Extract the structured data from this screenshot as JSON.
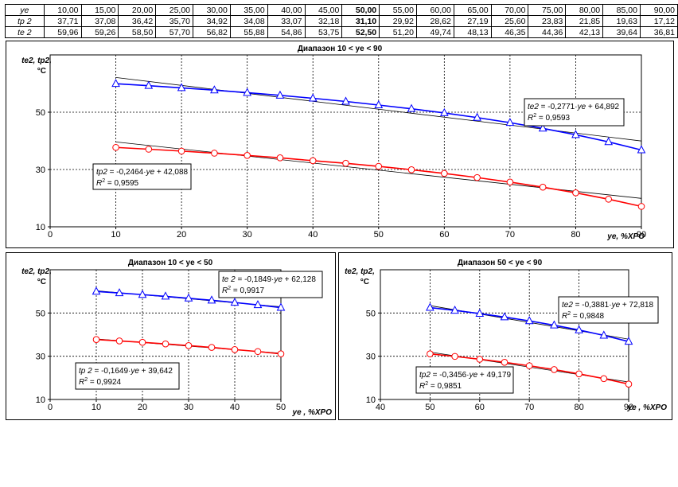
{
  "table": {
    "rows": [
      {
        "label": "ye",
        "values": [
          "10,00",
          "15,00",
          "20,00",
          "25,00",
          "30,00",
          "35,00",
          "40,00",
          "45,00",
          "50,00",
          "55,00",
          "60,00",
          "65,00",
          "70,00",
          "75,00",
          "80,00",
          "85,00",
          "90,00"
        ]
      },
      {
        "label": "tp 2",
        "values": [
          "37,71",
          "37,08",
          "36,42",
          "35,70",
          "34,92",
          "34,08",
          "33,07",
          "32,18",
          "31,10",
          "29,92",
          "28,62",
          "27,19",
          "25,60",
          "23,83",
          "21,85",
          "19,63",
          "17,12"
        ]
      },
      {
        "label": "te 2",
        "values": [
          "59,96",
          "59,26",
          "58,50",
          "57,70",
          "56,82",
          "55,88",
          "54,86",
          "53,75",
          "52,50",
          "51,20",
          "49,74",
          "48,13",
          "46,35",
          "44,36",
          "42,13",
          "39,64",
          "36,81"
        ]
      }
    ],
    "highlight_index": 8
  },
  "chart_data": [
    {
      "type": "line",
      "title": "Диапазон 10 < ye < 90",
      "ylabel_lines": [
        "te2, tp2,",
        "°C"
      ],
      "xlabel": "ye, %ХРО",
      "xlim": [
        0,
        90
      ],
      "ylim": [
        10,
        70
      ],
      "xticks": [
        "0",
        "10",
        "20",
        "30",
        "40",
        "50",
        "60",
        "70",
        "80",
        "90"
      ],
      "yticks": [
        "10",
        "30",
        "50"
      ],
      "grid": true,
      "series": [
        {
          "key": "te2",
          "color": "#0000ff",
          "marker": "triangle",
          "x": [
            10,
            15,
            20,
            25,
            30,
            35,
            40,
            45,
            50,
            55,
            60,
            65,
            70,
            75,
            80,
            85,
            90
          ],
          "values": [
            59.96,
            59.26,
            58.5,
            57.7,
            56.82,
            55.88,
            54.86,
            53.75,
            52.5,
            51.2,
            49.74,
            48.13,
            46.35,
            44.36,
            42.13,
            39.64,
            36.81
          ],
          "trend": {
            "slope": -0.2771,
            "intercept": 64.892
          }
        },
        {
          "key": "tp2",
          "color": "#ff0000",
          "marker": "circle",
          "x": [
            10,
            15,
            20,
            25,
            30,
            35,
            40,
            45,
            50,
            55,
            60,
            65,
            70,
            75,
            80,
            85,
            90
          ],
          "values": [
            37.71,
            37.08,
            36.42,
            35.7,
            34.92,
            34.08,
            33.07,
            32.18,
            31.1,
            29.92,
            28.62,
            27.19,
            25.6,
            23.83,
            21.85,
            19.63,
            17.12
          ],
          "trend": {
            "slope": -0.2464,
            "intercept": 42.088
          }
        }
      ],
      "annotations": [
        {
          "series": "te2",
          "equation": "te2 = -0,2771·ye + 64,892",
          "r2_label": "R",
          "r2_value": " = 0,9593"
        },
        {
          "series": "tp2",
          "equation": "tp2 = -0,2464·ye + 42,088",
          "r2_label": "R",
          "r2_value": " = 0,9595"
        }
      ]
    },
    {
      "type": "line",
      "title": "Диапазон  10 < ye < 50",
      "ylabel_lines": [
        "te2, tp2,",
        "°C"
      ],
      "xlabel": "ye , %ХРО",
      "xlim": [
        0,
        50
      ],
      "ylim": [
        10,
        70
      ],
      "xticks": [
        "0",
        "10",
        "20",
        "30",
        "40",
        "50"
      ],
      "yticks": [
        "10",
        "30",
        "50"
      ],
      "grid": true,
      "series": [
        {
          "key": "te2",
          "color": "#0000ff",
          "marker": "triangle",
          "x": [
            10,
            15,
            20,
            25,
            30,
            35,
            40,
            45,
            50
          ],
          "values": [
            59.96,
            59.26,
            58.5,
            57.7,
            56.82,
            55.88,
            54.86,
            53.75,
            52.5
          ],
          "trend": {
            "slope": -0.1849,
            "intercept": 62.128
          }
        },
        {
          "key": "tp2",
          "color": "#ff0000",
          "marker": "circle",
          "x": [
            10,
            15,
            20,
            25,
            30,
            35,
            40,
            45,
            50
          ],
          "values": [
            37.71,
            37.08,
            36.42,
            35.7,
            34.92,
            34.08,
            33.07,
            32.18,
            31.1
          ],
          "trend": {
            "slope": -0.1649,
            "intercept": 39.642
          }
        }
      ],
      "annotations": [
        {
          "series": "te2",
          "equation": "te 2 = -0,1849·ye + 62,128",
          "r2_label": "R",
          "r2_value": " = 0,9917"
        },
        {
          "series": "tp2",
          "equation": "tp 2 = -0,1649·ye + 39,642",
          "r2_label": "R",
          "r2_value": " = 0,9924"
        }
      ]
    },
    {
      "type": "line",
      "title": "Диапазон 50 < ye < 90",
      "ylabel_lines": [
        "te2, tp2,",
        "°C"
      ],
      "xlabel": "ye , %ХРО",
      "xlim": [
        40,
        90
      ],
      "ylim": [
        10,
        70
      ],
      "xticks": [
        "40",
        "50",
        "60",
        "70",
        "80",
        "90"
      ],
      "yticks": [
        "10",
        "30",
        "50"
      ],
      "grid": true,
      "series": [
        {
          "key": "te2",
          "color": "#0000ff",
          "marker": "triangle",
          "x": [
            50,
            55,
            60,
            65,
            70,
            75,
            80,
            85,
            90
          ],
          "values": [
            52.5,
            51.2,
            49.74,
            48.13,
            46.35,
            44.36,
            42.13,
            39.64,
            36.81
          ],
          "trend": {
            "slope": -0.3881,
            "intercept": 72.818
          }
        },
        {
          "key": "tp2",
          "color": "#ff0000",
          "marker": "circle",
          "x": [
            50,
            55,
            60,
            65,
            70,
            75,
            80,
            85,
            90
          ],
          "values": [
            31.1,
            29.92,
            28.62,
            27.19,
            25.6,
            23.83,
            21.85,
            19.63,
            17.12
          ],
          "trend": {
            "slope": -0.3456,
            "intercept": 49.179
          }
        }
      ],
      "annotations": [
        {
          "series": "te2",
          "equation": "te2 = -0,3881·ye + 72,818",
          "r2_label": "R",
          "r2_value": " = 0,9848"
        },
        {
          "series": "tp2",
          "equation": "tp2 = -0,3456·ye + 49,179",
          "r2_label": "R",
          "r2_value": " = 0,9851"
        }
      ]
    }
  ]
}
